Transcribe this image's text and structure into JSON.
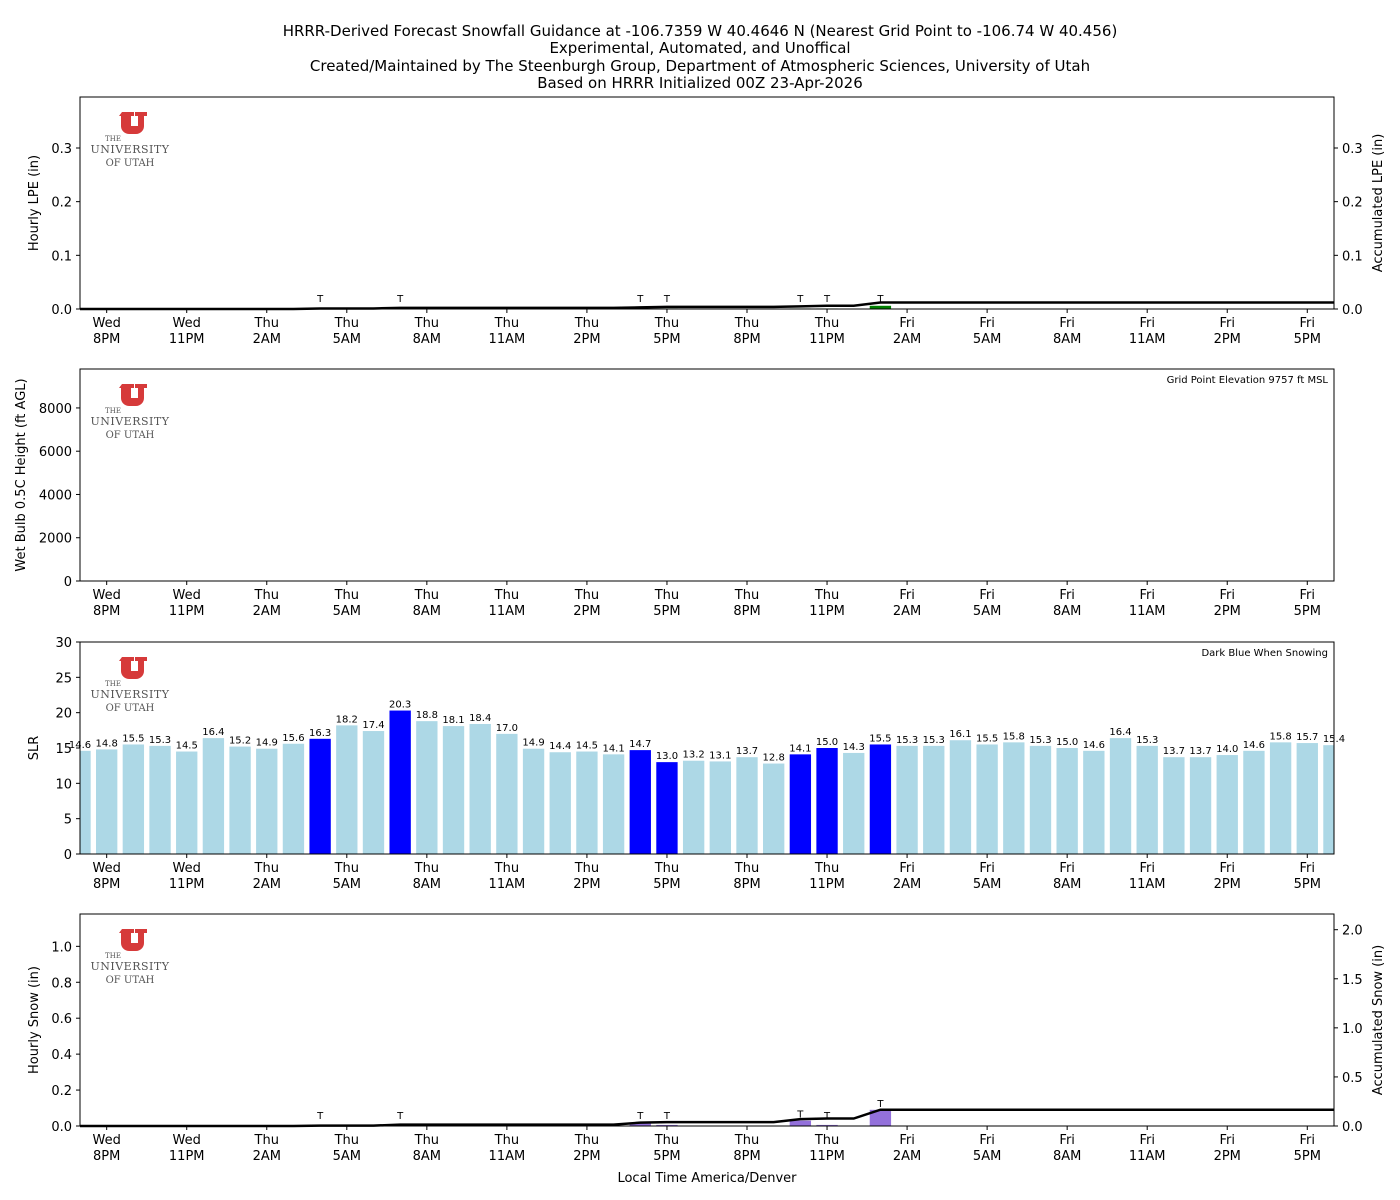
{
  "title_lines": [
    "HRRR-Derived Forecast Snowfall Guidance at -106.7359 W 40.4646 N (Nearest Grid Point to -106.74 W 40.456)",
    "Experimental, Automated, and Unoffical",
    "Created/Maintained by The Steenburgh Group, Department of Atmospheric Sciences, University of Utah",
    "Based on HRRR Initialized 00Z 23-Apr-2026"
  ],
  "logo": {
    "line1": "THE",
    "line2": "UNIVERSITY",
    "line3": "OF UTAH",
    "color": "#d63a3a"
  },
  "xlabel": "Local Time America/Denver",
  "x_ticks": [
    {
      "day": "Wed",
      "time": "8PM"
    },
    {
      "day": "Wed",
      "time": "11PM"
    },
    {
      "day": "Thu",
      "time": "2AM"
    },
    {
      "day": "Thu",
      "time": "5AM"
    },
    {
      "day": "Thu",
      "time": "8AM"
    },
    {
      "day": "Thu",
      "time": "11AM"
    },
    {
      "day": "Thu",
      "time": "2PM"
    },
    {
      "day": "Thu",
      "time": "5PM"
    },
    {
      "day": "Thu",
      "time": "8PM"
    },
    {
      "day": "Thu",
      "time": "11PM"
    },
    {
      "day": "Fri",
      "time": "2AM"
    },
    {
      "day": "Fri",
      "time": "5AM"
    },
    {
      "day": "Fri",
      "time": "8AM"
    },
    {
      "day": "Fri",
      "time": "11AM"
    },
    {
      "day": "Fri",
      "time": "2PM"
    },
    {
      "day": "Fri",
      "time": "5PM"
    }
  ],
  "x_tick_hour_index": [
    1,
    4,
    7,
    10,
    13,
    16,
    19,
    22,
    25,
    28,
    31,
    34,
    37,
    40,
    43,
    46
  ],
  "hours": 48,
  "trace_label": "T",
  "chart_data": [
    {
      "type": "bar",
      "id": "lpe",
      "ylabel": "Hourly LPE (in)",
      "ylabel_right": "Accumulated LPE (in)",
      "ylim": [
        0,
        0.395
      ],
      "yticks": [
        "0.0",
        "0.1",
        "0.2",
        "0.3"
      ],
      "ytick_values": [
        0,
        0.1,
        0.2,
        0.3
      ],
      "right_ylim": [
        0,
        0.395
      ],
      "right_yticks": [
        "0.0",
        "0.1",
        "0.2",
        "0.3"
      ],
      "right_ytick_values": [
        0,
        0.1,
        0.2,
        0.3
      ],
      "bar_color": "#008000",
      "hourly": {
        "9": 0.001,
        "12": 0.001,
        "21": 0.001,
        "22": 0.001,
        "27": 0.001,
        "28": 0.001,
        "30": 0.006
      },
      "trace_indices": [
        9,
        12,
        21,
        22,
        27,
        28,
        30
      ],
      "accumulated_color": "#000000"
    },
    {
      "type": "bar",
      "id": "wetbulb",
      "ylabel": "Wet Bulb 0.5C Height (ft AGL)",
      "ylim": [
        0,
        9800
      ],
      "yticks": [
        "0",
        "2000",
        "4000",
        "6000",
        "8000"
      ],
      "ytick_values": [
        0,
        2000,
        4000,
        6000,
        8000
      ],
      "annotation": "Grid Point Elevation 9757 ft MSL",
      "values": []
    },
    {
      "type": "bar",
      "id": "slr",
      "ylabel": "SLR",
      "ylim": [
        0,
        30
      ],
      "yticks": [
        "0",
        "5",
        "10",
        "15",
        "20",
        "25",
        "30"
      ],
      "ytick_values": [
        0,
        5,
        10,
        15,
        20,
        25,
        30
      ],
      "annotation": "Dark Blue When Snowing",
      "color_default": "#add8e6",
      "color_snowing": "#0000ff",
      "values": [
        14.6,
        14.8,
        15.5,
        15.3,
        14.5,
        16.4,
        15.2,
        14.9,
        15.6,
        16.3,
        18.2,
        17.4,
        20.3,
        18.8,
        18.1,
        18.4,
        17.0,
        14.9,
        14.4,
        14.5,
        14.1,
        14.7,
        13.0,
        13.2,
        13.1,
        13.7,
        12.8,
        14.1,
        15.0,
        14.3,
        15.5,
        15.3,
        15.3,
        16.1,
        15.5,
        15.8,
        15.3,
        15.0,
        14.6,
        16.4,
        15.3,
        13.7,
        13.7,
        14.0,
        14.6,
        15.8,
        15.7,
        15.4
      ],
      "labels": [
        "14.6",
        "14.8",
        "15.5",
        "15.3",
        "14.5",
        "16.4",
        "15.2",
        "14.9",
        "15.6",
        "16.3",
        "18.2",
        "17.4",
        "20.3",
        "18.8",
        "18.1",
        "18.4",
        "17.0",
        "14.9",
        "14.4",
        "14.5",
        "14.1",
        "14.7",
        "13.0",
        "13.2",
        "13.1",
        "13.7",
        "12.8",
        "14.1",
        "15.0",
        "14.3",
        "15.5",
        "15.3",
        "15.3",
        "16.1",
        "15.5",
        "15.8",
        "15.3",
        "15.0",
        "14.6",
        "16.4",
        "15.3",
        "13.7",
        "13.7",
        "14.0",
        "14.6",
        "15.8",
        "15.7",
        "15.4"
      ],
      "snowing_indices": [
        9,
        12,
        21,
        22,
        27,
        28,
        30
      ]
    },
    {
      "type": "bar",
      "id": "snow",
      "ylabel": "Hourly Snow (in)",
      "ylabel_right": "Accumulated Snow (in)",
      "ylim": [
        0,
        1.18
      ],
      "yticks": [
        "0.0",
        "0.2",
        "0.4",
        "0.6",
        "0.8",
        "1.0"
      ],
      "ytick_values": [
        0,
        0.2,
        0.4,
        0.6,
        0.8,
        1.0
      ],
      "right_ylim": [
        0,
        2.16
      ],
      "right_yticks": [
        "0.0",
        "0.5",
        "1.0",
        "1.5",
        "2.0"
      ],
      "right_ytick_values": [
        0,
        0.5,
        1.0,
        1.5,
        2.0
      ],
      "bar_color": "#9370db",
      "hourly": {
        "9": 0.004,
        "12": 0.01,
        "21": 0.02,
        "22": 0.006,
        "27": 0.03,
        "28": 0.006,
        "30": 0.09
      },
      "trace_indices": [
        9,
        12,
        21,
        22,
        27,
        28,
        30
      ],
      "accumulated_color": "#000000"
    }
  ]
}
